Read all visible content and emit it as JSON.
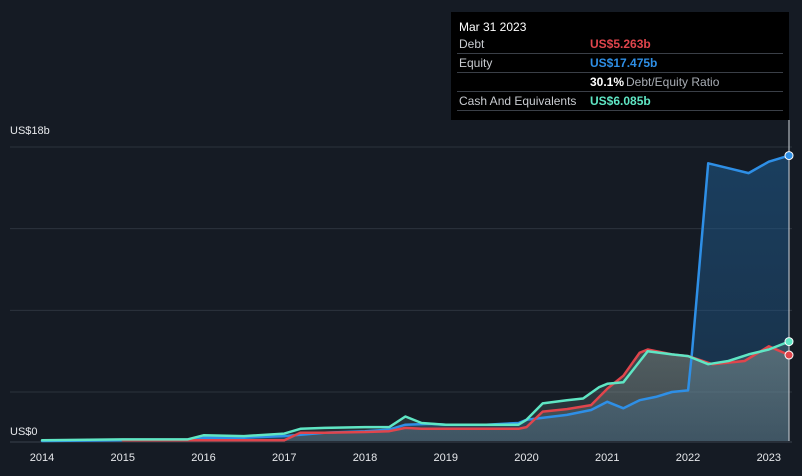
{
  "chart_data": {
    "type": "area",
    "y_axis": {
      "max_label": "US$18b",
      "min_label": "US$0",
      "ylim": [
        0,
        18
      ],
      "unit": "US$b"
    },
    "x_ticks": [
      "2014",
      "2015",
      "2016",
      "2017",
      "2018",
      "2019",
      "2020",
      "2021",
      "2022",
      "2023"
    ],
    "xlim": [
      2014.0,
      2023.25
    ],
    "tooltip": {
      "date": "Mar 31 2023",
      "rows": [
        {
          "label": "Debt",
          "value": "US$5.263b",
          "color": "#e0454c"
        },
        {
          "label": "Equity",
          "value": "US$17.475b",
          "color": "#2e8fe6"
        },
        {
          "label": "",
          "value": "30.1%",
          "suffix": "Debt/Equity Ratio",
          "color": "#ffffff"
        },
        {
          "label": "Cash And Equivalents",
          "value": "US$6.085b",
          "color": "#5fe6c4"
        }
      ]
    },
    "series": [
      {
        "name": "Debt",
        "color": "#e0454c",
        "x": [
          2015.0,
          2015.5,
          2016.0,
          2016.5,
          2017.0,
          2017.2,
          2017.5,
          2018.0,
          2018.3,
          2018.5,
          2018.7,
          2019.0,
          2019.5,
          2019.9,
          2020.0,
          2020.2,
          2020.5,
          2020.8,
          2021.0,
          2021.2,
          2021.4,
          2021.5,
          2021.8,
          2022.0,
          2022.3,
          2022.7,
          2023.0,
          2023.25
        ],
        "y": [
          0.05,
          0.05,
          0.05,
          0.05,
          0.05,
          0.5,
          0.5,
          0.55,
          0.6,
          0.8,
          0.75,
          0.75,
          0.75,
          0.75,
          0.85,
          1.8,
          1.95,
          2.2,
          3.2,
          4.0,
          5.4,
          5.6,
          5.3,
          5.2,
          4.7,
          4.9,
          5.8,
          5.263
        ]
      },
      {
        "name": "Equity",
        "color": "#2e8fe6",
        "x": [
          2014.0,
          2015.0,
          2015.8,
          2016.0,
          2016.5,
          2017.0,
          2017.5,
          2018.0,
          2018.3,
          2018.5,
          2018.8,
          2019.0,
          2019.5,
          2019.9,
          2020.0,
          2020.5,
          2020.8,
          2021.0,
          2021.2,
          2021.4,
          2021.6,
          2021.8,
          2022.0,
          2022.05,
          2022.25,
          2022.5,
          2022.75,
          2023.0,
          2023.25
        ],
        "y": [
          0.0,
          0.05,
          0.05,
          0.2,
          0.2,
          0.3,
          0.5,
          0.6,
          0.7,
          1.0,
          1.05,
          1.0,
          1.0,
          1.1,
          1.3,
          1.6,
          1.9,
          2.4,
          2.0,
          2.5,
          2.7,
          3.0,
          3.1,
          5.5,
          17.0,
          16.7,
          16.4,
          17.1,
          17.475
        ]
      },
      {
        "name": "Cash And Equivalents",
        "color": "#5fe6c4",
        "x": [
          2014.0,
          2015.0,
          2015.8,
          2016.0,
          2016.5,
          2017.0,
          2017.2,
          2017.5,
          2018.0,
          2018.3,
          2018.5,
          2018.7,
          2019.0,
          2019.5,
          2019.9,
          2020.0,
          2020.2,
          2020.5,
          2020.7,
          2020.9,
          2021.0,
          2021.2,
          2021.5,
          2021.8,
          2022.0,
          2022.25,
          2022.5,
          2022.75,
          2023.0,
          2023.25
        ],
        "y": [
          0.05,
          0.1,
          0.1,
          0.35,
          0.3,
          0.45,
          0.75,
          0.8,
          0.85,
          0.85,
          1.5,
          1.1,
          1.0,
          1.0,
          1.0,
          1.3,
          2.3,
          2.5,
          2.6,
          3.3,
          3.5,
          3.6,
          5.5,
          5.3,
          5.2,
          4.7,
          4.9,
          5.3,
          5.6,
          6.085
        ]
      }
    ]
  }
}
